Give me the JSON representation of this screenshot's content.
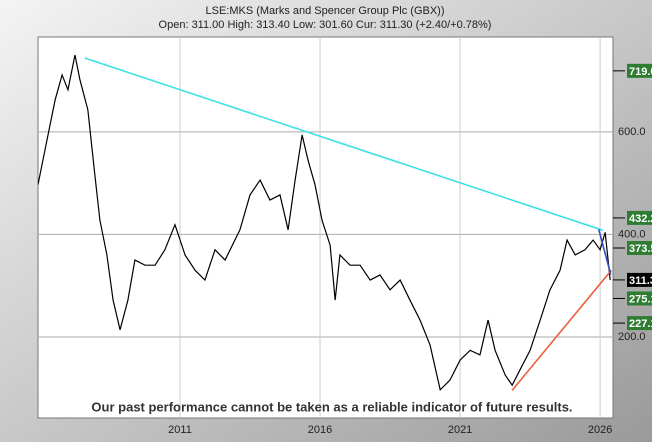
{
  "chart_data": {
    "type": "line",
    "title": "LSE:MKS (Marks and Spencer Group Plc (GBX))",
    "subtitle": "Open: 311.00 High: 313.40 Low: 301.60 Cur: 311.30 (+2.40/+0.78%)",
    "annotation": "Our past performance cannot be taken as a reliable indicator of future results.",
    "x": [
      2005.93,
      2006.18,
      2006.54,
      2006.79,
      2007.0,
      2007.25,
      2007.43,
      2007.71,
      2007.96,
      2008.14,
      2008.39,
      2008.61,
      2008.86,
      2009.14,
      2009.39,
      2009.75,
      2010.11,
      2010.46,
      2010.82,
      2011.18,
      2011.54,
      2011.89,
      2012.25,
      2012.61,
      2013.14,
      2013.5,
      2013.86,
      2014.21,
      2014.57,
      2014.86,
      2015.11,
      2015.36,
      2015.57,
      2015.82,
      2016.07,
      2016.36,
      2016.54,
      2016.71,
      2017.07,
      2017.43,
      2017.79,
      2018.14,
      2018.5,
      2018.86,
      2019.21,
      2019.57,
      2019.93,
      2020.29,
      2020.64,
      2021.0,
      2021.36,
      2021.71,
      2022.0,
      2022.25,
      2022.61,
      2022.86,
      2023.14,
      2023.5,
      2023.86,
      2024.21,
      2024.57,
      2024.82,
      2025.11,
      2025.46,
      2025.75,
      2026.0,
      2026.18,
      2026.36
    ],
    "values": [
      497,
      565,
      662,
      711,
      682,
      750,
      701,
      643,
      516,
      428,
      360,
      272,
      214,
      272,
      350,
      340,
      340,
      370,
      419,
      360,
      330,
      311,
      370,
      350,
      409,
      477,
      506,
      467,
      477,
      409,
      506,
      594,
      545,
      497,
      428,
      379,
      272,
      360,
      340,
      340,
      311,
      321,
      292,
      311,
      272,
      233,
      184,
      97,
      116,
      155,
      174,
      165,
      233,
      174,
      126,
      106,
      136,
      174,
      233,
      292,
      330,
      389,
      360,
      370,
      389,
      370,
      404,
      311
    ],
    "color": "#000000",
    "trendlines": [
      {
        "x": [
          2007.6,
          2026.1
        ],
        "values": [
          744,
          408
        ],
        "color": "#40e0e8"
      },
      {
        "x": [
          2022.86,
          2026.4
        ],
        "values": [
          96,
          330
        ],
        "color": "#f06040"
      },
      {
        "x": [
          2025.95,
          2026.38
        ],
        "values": [
          410,
          322
        ],
        "color": "#3050c0"
      }
    ],
    "levels": [
      {
        "value": {
          "value": 719,
          "label": "719.0"
        },
        "color": "#2e7d32"
      },
      {
        "value": 432.2,
        "color": "#2e7d32"
      },
      {
        "value": 373.5,
        "color": "#2e7d32"
      },
      {
        "value": 311.3,
        "color": "#000000"
      },
      {
        "value": 275.1,
        "color": "#2e7d32"
      },
      {
        "value": 227.1,
        "color": "#2e7d32"
      }
    ],
    "xlim": [
      2005.93,
      2026.46
    ],
    "xticks": [
      2011,
      2016,
      2021,
      2026
    ],
    "ylim": [
      42,
      785
    ],
    "yticks": [
      {
        "value": 200,
        "label": "200.0"
      },
      {
        "value": 400,
        "label": "400.0"
      },
      {
        "value": 600,
        "label": "600.0"
      }
    ],
    "grid": true
  }
}
